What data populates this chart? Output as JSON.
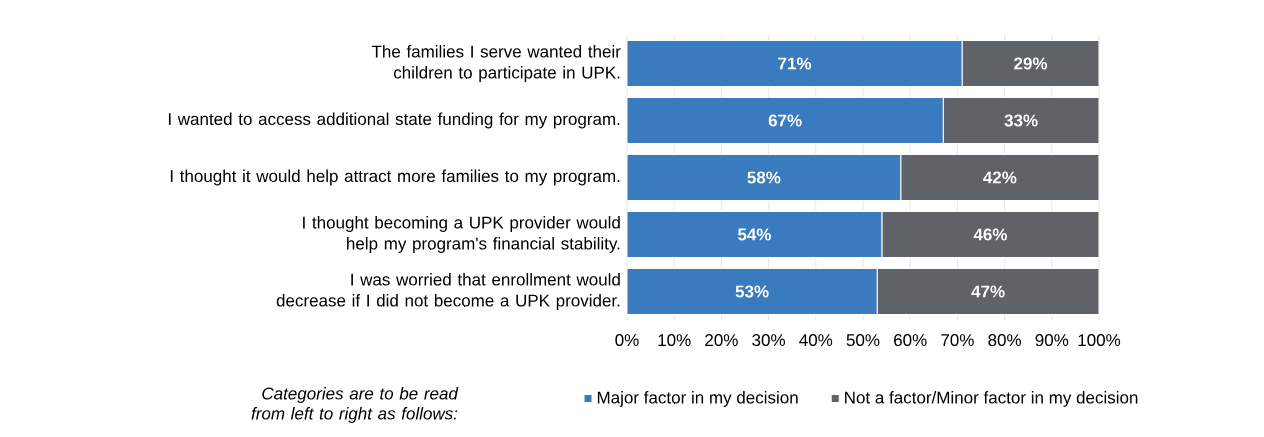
{
  "chart_data": {
    "type": "bar",
    "orientation": "horizontal",
    "stacked": true,
    "categories": [
      "The families I serve wanted their children to participate in UPK.",
      "I wanted to access additional state funding for my program.",
      "I thought it would help attract more families to my program.",
      "I thought becoming a UPK provider would help my program's financial stability.",
      "I was worried that enrollment would decrease if I did not become a UPK provider."
    ],
    "series": [
      {
        "name": "Major factor in my decision",
        "color": "#3a7bbf",
        "values": [
          71,
          67,
          58,
          54,
          53
        ],
        "value_labels": [
          "71%",
          "67%",
          "58%",
          "54%",
          "53%"
        ]
      },
      {
        "name": "Not a factor/Minor factor in my decision",
        "color": "#5f6368",
        "values": [
          29,
          33,
          42,
          46,
          47
        ],
        "value_labels": [
          "29%",
          "33%",
          "42%",
          "46%",
          "47%"
        ]
      }
    ],
    "xlim": [
      0,
      100
    ],
    "xticks": [
      {
        "value": 0,
        "label": "0%"
      },
      {
        "value": 10,
        "label": "10%"
      },
      {
        "value": 20,
        "label": "20%"
      },
      {
        "value": 30,
        "label": "30%"
      },
      {
        "value": 40,
        "label": "40%"
      },
      {
        "value": 50,
        "label": "50%"
      },
      {
        "value": 60,
        "label": "60%"
      },
      {
        "value": 70,
        "label": "70%"
      },
      {
        "value": 80,
        "label": "80%"
      },
      {
        "value": 90,
        "label": "90%"
      },
      {
        "value": 100,
        "label": "100%"
      }
    ],
    "grid": "x",
    "legend": "bottom",
    "annotations": [
      "*Categories are to be read from left to right as follows:*"
    ]
  }
}
